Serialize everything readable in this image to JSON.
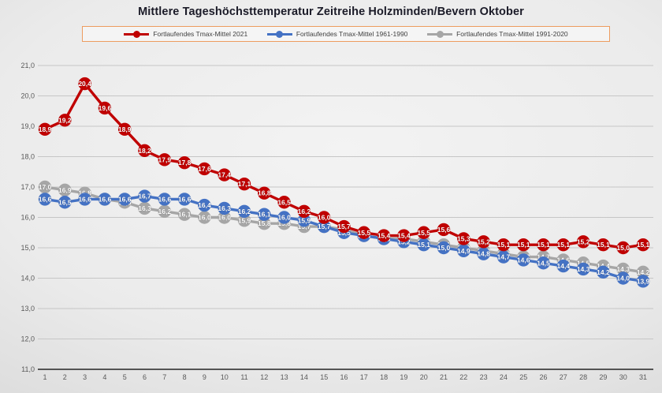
{
  "title": "Mittlere Tageshöchsttemperatur Zeitreihe Holzminden/Bevern Oktober",
  "number_format": {
    "decimal_separator": ",",
    "data_label_decimals": 1
  },
  "colors": {
    "series_2021": "#c00000",
    "series_1961_1990": "#4472c4",
    "series_1991_2020": "#a6a6a6",
    "legend_border": "#ed9c5f",
    "gridline": "#c6c6c6",
    "axis_line": "#3f3f3f",
    "axis_text": "#595959",
    "data_label_text": "#ffffff",
    "title_text": "#1b1b28"
  },
  "chart_data": {
    "type": "line",
    "title": "Mittlere Tageshöchsttemperatur Zeitreihe Holzminden/Bevern Oktober",
    "xlabel": "",
    "ylabel": "",
    "x": [
      1,
      2,
      3,
      4,
      5,
      6,
      7,
      8,
      9,
      10,
      11,
      12,
      13,
      14,
      15,
      16,
      17,
      18,
      19,
      20,
      21,
      22,
      23,
      24,
      25,
      26,
      27,
      28,
      29,
      30,
      31
    ],
    "ylim": [
      11.0,
      21.0
    ],
    "ytick_step": 1.0,
    "yticks": [
      "21,0",
      "20,0",
      "19,0",
      "18,0",
      "17,0",
      "16,0",
      "15,0",
      "14,0",
      "13,0",
      "12,0",
      "11,0"
    ],
    "grid": "horizontal",
    "legend_position": "top",
    "markers": "circle-with-value-labels",
    "series": [
      {
        "name": "Fortlaufendes Tmax-Mittel 2021",
        "color": "#c00000",
        "values": [
          18.9,
          19.2,
          20.4,
          19.6,
          18.9,
          18.2,
          17.9,
          17.8,
          17.6,
          17.4,
          17.1,
          16.8,
          16.5,
          16.2,
          16.0,
          15.7,
          15.5,
          15.4,
          15.4,
          15.5,
          15.6,
          15.3,
          15.2,
          15.1,
          15.1,
          15.1,
          15.1,
          15.2,
          15.1,
          15.0,
          15.1
        ]
      },
      {
        "name": "Fortlaufendes Tmax-Mittel 1961-1990",
        "color": "#4472c4",
        "values": [
          16.6,
          16.5,
          16.6,
          16.6,
          16.6,
          16.7,
          16.6,
          16.6,
          16.4,
          16.3,
          16.2,
          16.1,
          16.0,
          15.9,
          15.7,
          15.5,
          15.4,
          15.3,
          15.2,
          15.1,
          15.0,
          14.9,
          14.8,
          14.7,
          14.6,
          14.5,
          14.4,
          14.3,
          14.2,
          14.0,
          13.9
        ]
      },
      {
        "name": "Fortlaufendes Tmax-Mittel 1991-2020",
        "color": "#a6a6a6",
        "values": [
          17.0,
          16.9,
          16.8,
          16.6,
          16.5,
          16.3,
          16.2,
          16.1,
          16.0,
          16.0,
          15.9,
          15.8,
          15.8,
          15.7,
          15.7,
          15.6,
          15.4,
          15.3,
          15.3,
          15.2,
          15.1,
          15.0,
          14.9,
          14.8,
          14.7,
          14.7,
          14.6,
          14.5,
          14.4,
          14.3,
          14.2
        ]
      }
    ]
  }
}
